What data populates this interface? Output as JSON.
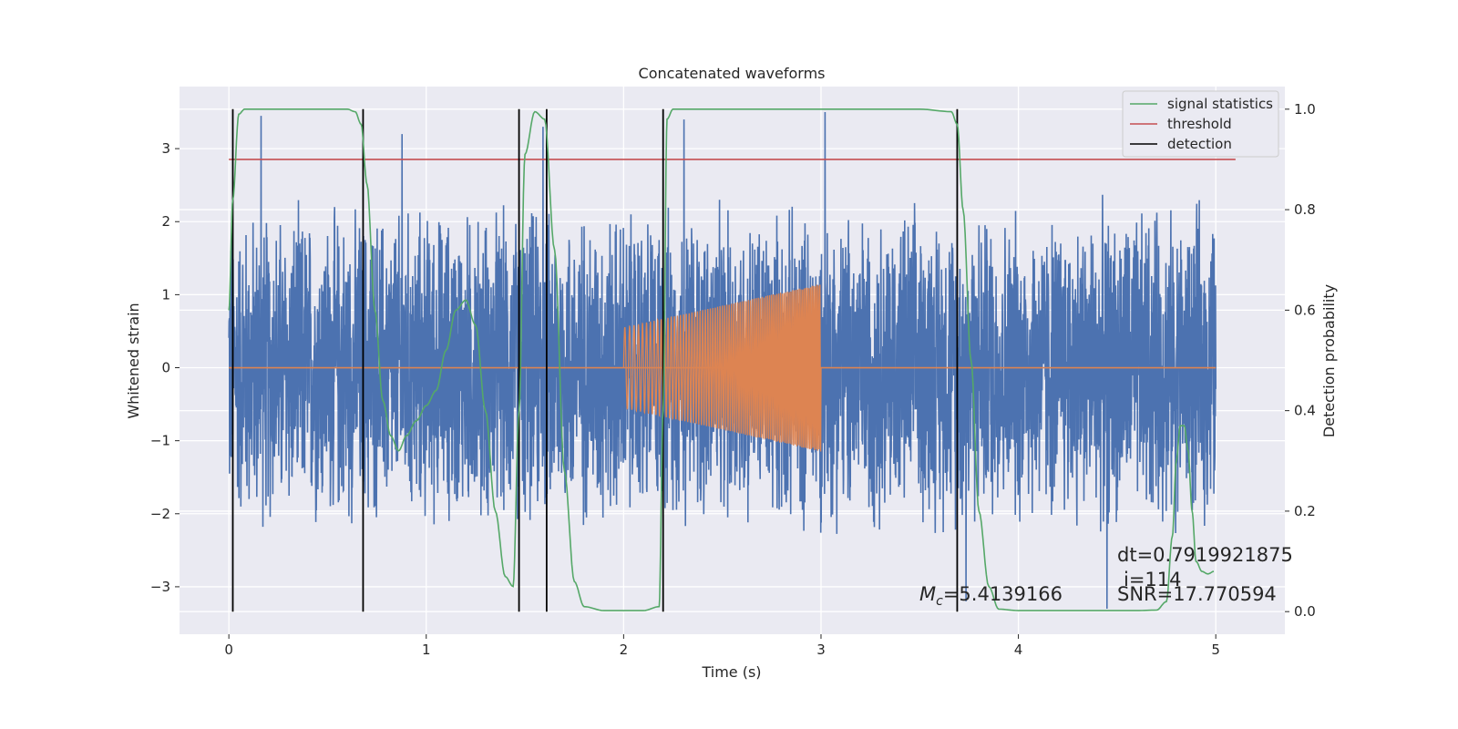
{
  "chart_data": {
    "type": "line",
    "title": "Concatenated waveforms",
    "xlabel": "Time (s)",
    "ylabel": "Whitened strain",
    "y2label": "Detection probability",
    "xlim": [
      -0.25,
      5.35
    ],
    "ylim": [
      -3.65,
      3.85
    ],
    "y2lim": [
      -0.045,
      1.045
    ],
    "xticks": [
      0,
      1,
      2,
      3,
      4,
      5
    ],
    "yticks": [
      -3,
      -2,
      -1,
      0,
      1,
      2,
      3
    ],
    "y2ticks": [
      0.0,
      0.2,
      0.4,
      0.6,
      0.8,
      1.0
    ],
    "grid": true,
    "legend_position": "top-right",
    "colors": {
      "strain": "#4c72b0",
      "injected_signal": "#dd8452",
      "signal_statistics": "#55a868",
      "threshold": "#c44e52",
      "detection": "#000000",
      "plot_background": "#eaeaf2",
      "grid": "#ffffff"
    },
    "series": [
      {
        "name": "signal statistics",
        "axis": "right",
        "x": [
          0.0,
          0.02,
          0.05,
          0.08,
          0.12,
          0.2,
          0.4,
          0.6,
          0.64,
          0.67,
          0.7,
          0.74,
          0.78,
          0.82,
          0.86,
          0.9,
          0.95,
          1.0,
          1.05,
          1.1,
          1.15,
          1.2,
          1.25,
          1.3,
          1.35,
          1.4,
          1.44,
          1.47,
          1.5,
          1.55,
          1.6,
          1.65,
          1.7,
          1.75,
          1.8,
          1.9,
          2.0,
          2.1,
          2.18,
          2.2,
          2.22,
          2.25,
          2.3,
          2.5,
          3.0,
          3.5,
          3.66,
          3.69,
          3.72,
          3.76,
          3.8,
          3.85,
          3.9,
          4.0,
          4.2,
          4.4,
          4.6,
          4.7,
          4.75,
          4.78,
          4.8,
          4.82,
          4.84,
          4.86,
          4.88,
          4.9,
          4.93,
          4.96,
          4.99
        ],
        "y": [
          0.6,
          0.82,
          0.99,
          1.0,
          1.0,
          1.0,
          1.0,
          1.0,
          0.995,
          0.97,
          0.85,
          0.6,
          0.42,
          0.35,
          0.32,
          0.35,
          0.38,
          0.41,
          0.44,
          0.52,
          0.6,
          0.62,
          0.57,
          0.4,
          0.2,
          0.07,
          0.05,
          0.4,
          0.91,
          0.995,
          0.98,
          0.72,
          0.28,
          0.06,
          0.01,
          0.002,
          0.002,
          0.002,
          0.01,
          0.4,
          0.98,
          1.0,
          1.0,
          1.0,
          1.0,
          1.0,
          0.995,
          0.97,
          0.8,
          0.5,
          0.2,
          0.05,
          0.005,
          0.002,
          0.002,
          0.002,
          0.002,
          0.003,
          0.02,
          0.15,
          0.3,
          0.37,
          0.37,
          0.32,
          0.2,
          0.1,
          0.08,
          0.075,
          0.08
        ]
      },
      {
        "name": "threshold",
        "axis": "right",
        "x": [
          0.0,
          5.1
        ],
        "y": [
          0.9,
          0.9
        ]
      },
      {
        "name": "detection",
        "axis": "right",
        "vlines": [
          0.02,
          0.68,
          1.47,
          1.61,
          2.2,
          3.69
        ],
        "ymin": 0.0,
        "ymax": 1.0
      }
    ],
    "strain_noise": {
      "axis": "left",
      "x_range": [
        0.0,
        5.0
      ],
      "typical_abs_max": 2.4,
      "peak_values": [
        3.45,
        3.2,
        3.3,
        3.4,
        3.5,
        -3.2,
        -3.3
      ]
    },
    "injected_chirp": {
      "axis": "left",
      "x_range": [
        2.0,
        3.0
      ],
      "amplitude_start": 0.55,
      "amplitude_end": 1.15,
      "baseline": 0.0
    },
    "annotations": {
      "mc": "=5.4139166",
      "dt": "dt=0.7919921875",
      "index": "i=114",
      "snr": "SNR=17.770594"
    },
    "mc_symbol": "M",
    "mc_subscript": "c"
  }
}
